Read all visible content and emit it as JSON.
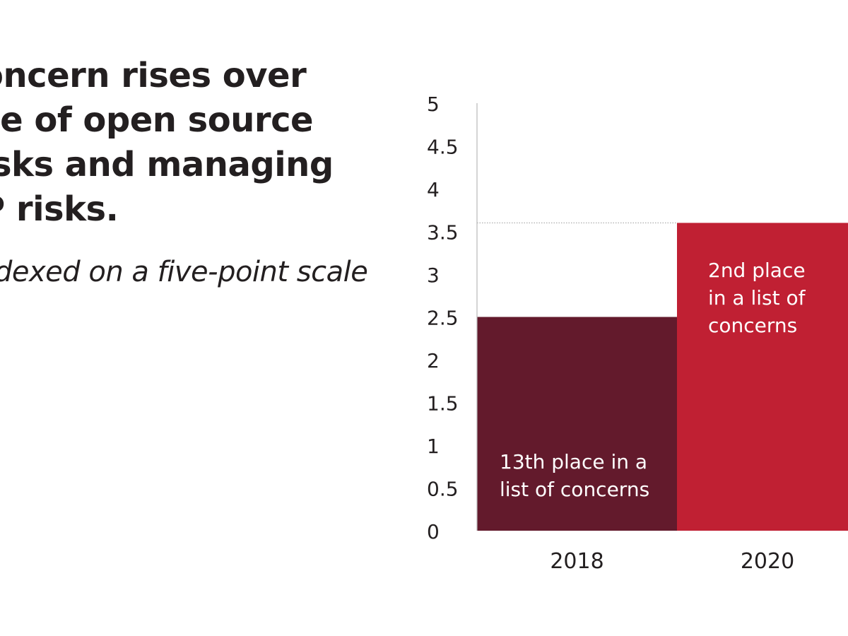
{
  "chart_data": {
    "type": "bar",
    "title_lines": [
      "oncern rises over",
      "se of open source",
      "isks and managing",
      "P risks."
    ],
    "subtitle": "dexed on a five-point scale",
    "categories": [
      "2018",
      "2020"
    ],
    "values": [
      2.5,
      3.6
    ],
    "bar_colors": [
      "#631a2c",
      "#c02033"
    ],
    "bar_labels": [
      [
        "13th place in a",
        "list of concerns"
      ],
      [
        "2nd place",
        "in a list of",
        "concerns"
      ]
    ],
    "ylim": [
      0,
      5
    ],
    "yticks": [
      "0",
      "0.5",
      "1",
      "1.5",
      "2",
      "2.5",
      "3",
      "3.5",
      "4",
      "4.5",
      "5"
    ],
    "reference_line": 3.6,
    "xlabel": "",
    "ylabel": ""
  }
}
